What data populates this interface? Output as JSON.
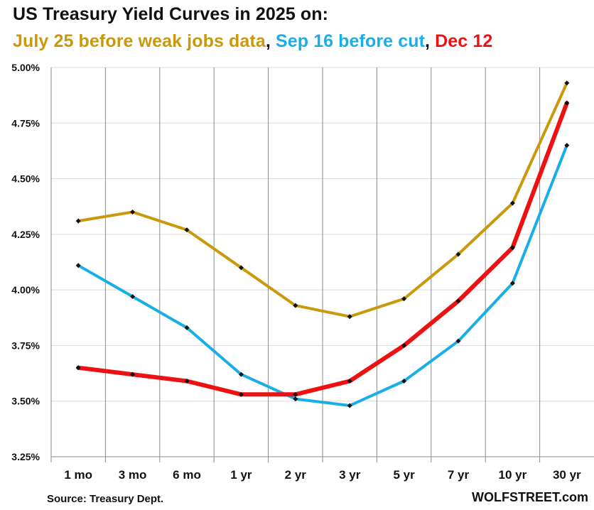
{
  "chart_data": {
    "type": "line",
    "title": "US Treasury Yield Curves in 2025 on:",
    "subtitle_parts": [
      {
        "text": "July 25 before weak jobs data",
        "color": "#C9990A"
      },
      {
        "text": ", ",
        "color": "#111111"
      },
      {
        "text": "Sep 16 before cut",
        "color": "#1AAEE6"
      },
      {
        "text": ", ",
        "color": "#111111"
      },
      {
        "text": "Dec 12",
        "color": "#EE1111"
      }
    ],
    "categories": [
      "1 mo",
      "3 mo",
      "6 mo",
      "1 yr",
      "2 yr",
      "3 yr",
      "5 yr",
      "7 yr",
      "10 yr",
      "30 yr"
    ],
    "ylim": [
      3.25,
      5.0
    ],
    "yticks": [
      3.25,
      3.5,
      3.75,
      4.0,
      4.25,
      4.5,
      4.75,
      5.0
    ],
    "ytick_labels": [
      "3.25%",
      "3.50%",
      "3.75%",
      "4.00%",
      "4.25%",
      "4.50%",
      "4.75%",
      "5.00%"
    ],
    "xlabel": "",
    "ylabel": "",
    "legend": "none",
    "grid": {
      "horizontal": true,
      "vertical": true
    },
    "series": [
      {
        "name": "July 25 before weak jobs data",
        "color": "#C9990A",
        "values": [
          4.31,
          4.35,
          4.27,
          4.1,
          3.93,
          3.88,
          3.96,
          4.16,
          4.39,
          4.93
        ]
      },
      {
        "name": "Sep 16 before cut",
        "color": "#1AAEE6",
        "values": [
          4.11,
          3.97,
          3.83,
          3.62,
          3.51,
          3.48,
          3.59,
          3.77,
          4.03,
          4.65
        ]
      },
      {
        "name": "Dec 12",
        "color": "#EE1111",
        "values": [
          3.65,
          3.62,
          3.59,
          3.53,
          3.53,
          3.59,
          3.75,
          3.95,
          4.19,
          4.84
        ]
      }
    ]
  },
  "footer": {
    "source": "Source: Treasury Dept.",
    "credit": "WOLFSTREET.com"
  }
}
